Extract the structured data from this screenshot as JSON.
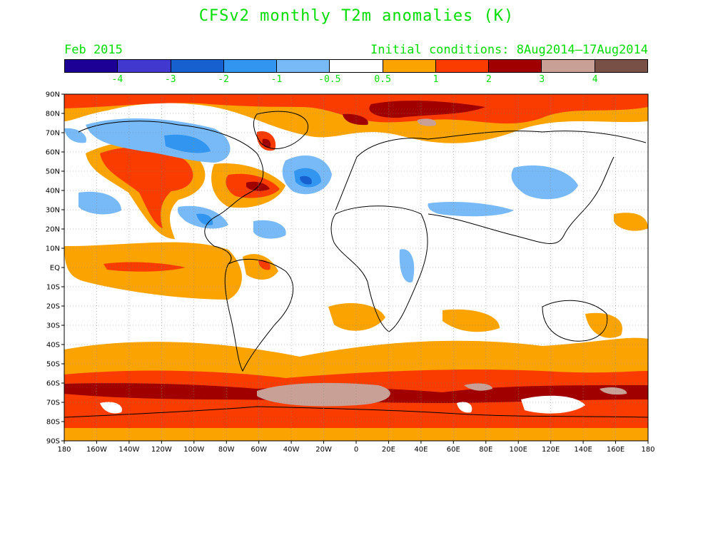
{
  "title": "CFSv2 monthly T2m anomalies (K)",
  "valid_month": "Feb 2015",
  "initial_conditions": "Initial conditions: 8Aug2014–17Aug2014",
  "colorbar": {
    "colors": [
      "#1c0096",
      "#4038cf",
      "#1660cf",
      "#3296f0",
      "#78b9f8",
      "#ffffff",
      "#fba300",
      "#fb3c00",
      "#a00000",
      "#c8a096",
      "#785046"
    ],
    "labels": [
      "-4",
      "-3",
      "-2",
      "-1",
      "-0.5",
      "0.5",
      "1",
      "2",
      "3",
      "4"
    ]
  },
  "map": {
    "lat_labels": [
      "90N",
      "80N",
      "70N",
      "60N",
      "50N",
      "40N",
      "30N",
      "20N",
      "10N",
      "EQ",
      "10S",
      "20S",
      "30S",
      "40S",
      "50S",
      "60S",
      "70S",
      "80S",
      "90S"
    ],
    "lon_labels": [
      "180",
      "160W",
      "140W",
      "120W",
      "100W",
      "80W",
      "60W",
      "40W",
      "20W",
      "0",
      "20E",
      "40E",
      "60E",
      "80E",
      "100E",
      "120E",
      "140E",
      "160E",
      "180"
    ],
    "colors": {
      "ocean_warm": "#fba300",
      "strong_warm": "#fb3c00",
      "very_warm": "#a00000",
      "extreme": "#c8a096",
      "cool_light": "#78b9f8",
      "cool": "#3296f0",
      "cool_strong": "#1660cf",
      "coast": "#000000"
    }
  }
}
